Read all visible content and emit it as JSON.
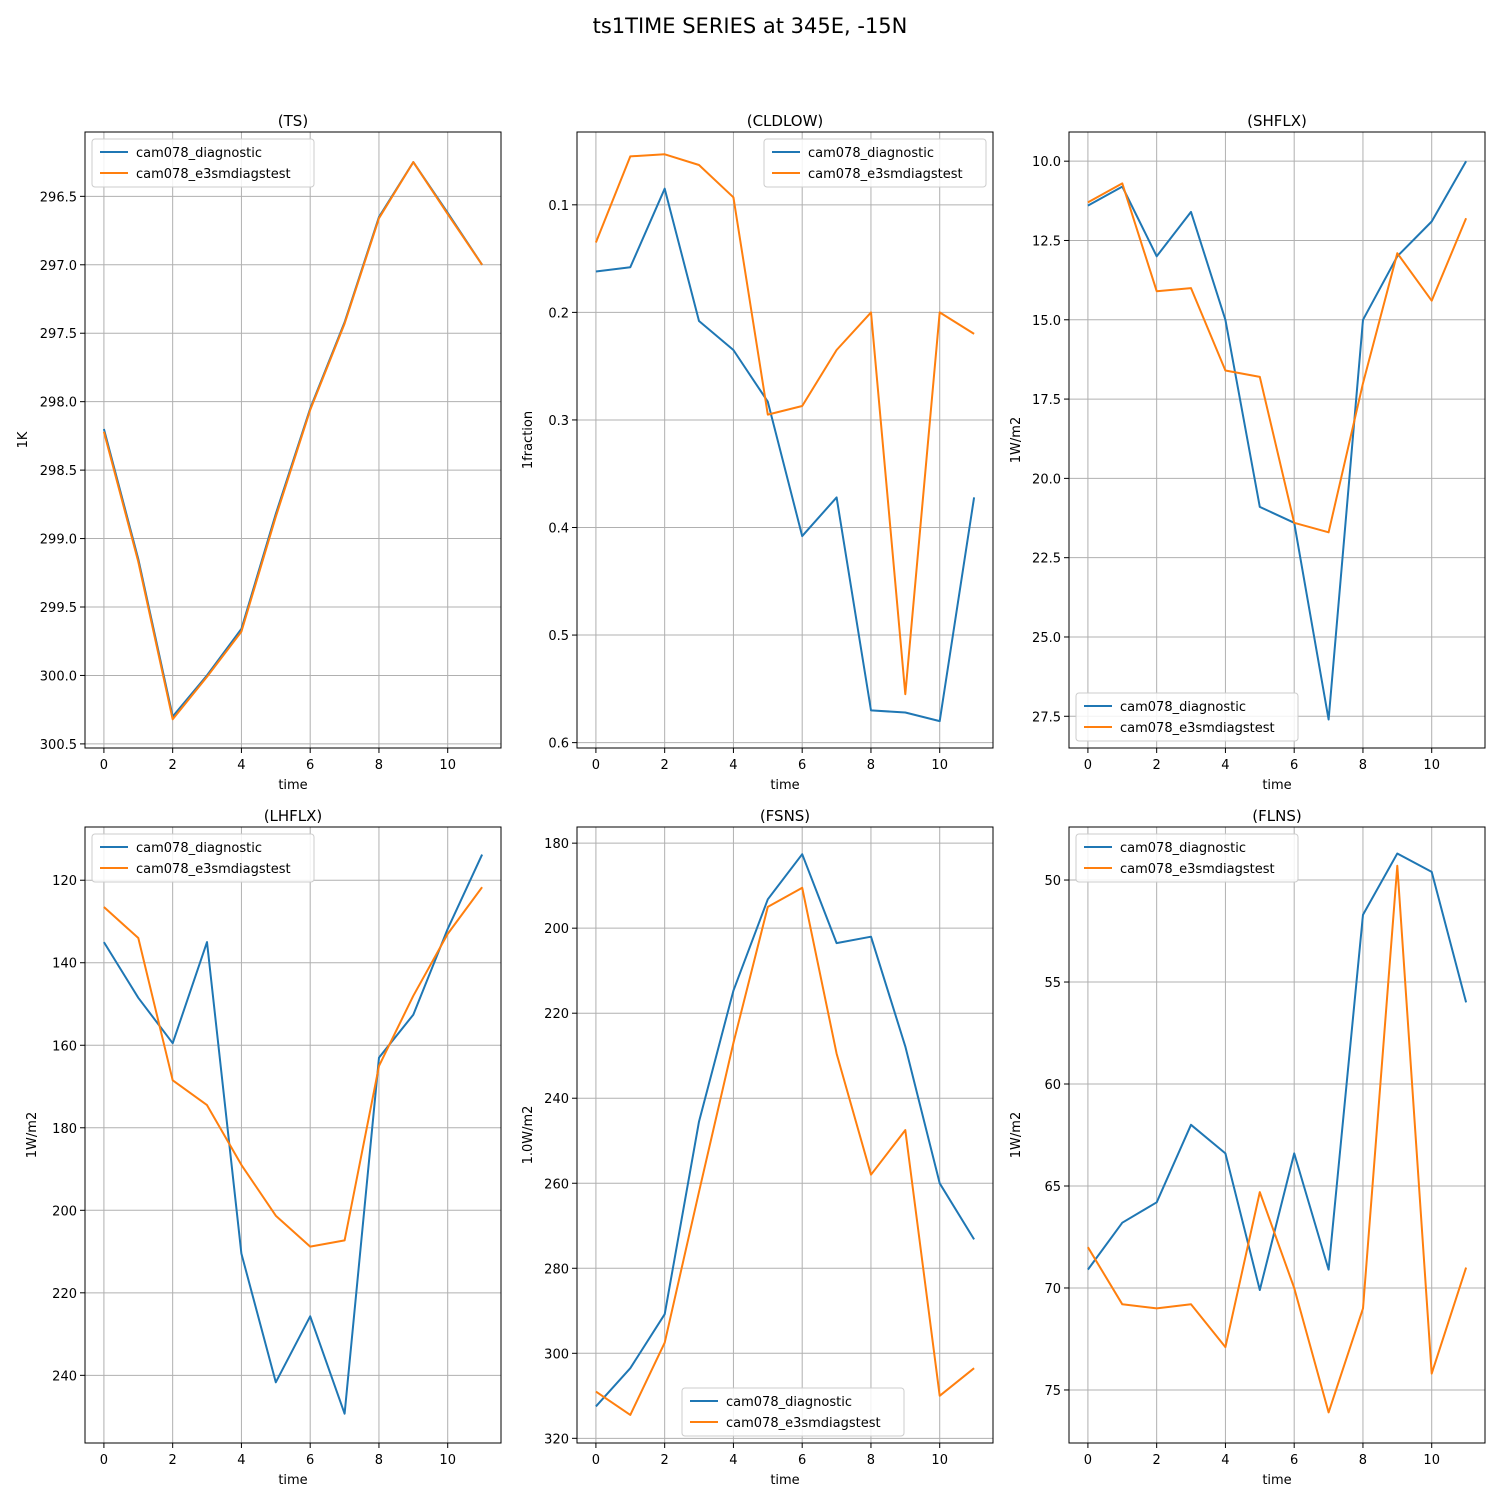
{
  "figure": {
    "suptitle": "ts1TIME SERIES at 345E, -15N",
    "colors": {
      "diagnostic": "#1f77b4",
      "e3smdiagstest": "#ff7f0e",
      "grid": "#b0b0b0"
    }
  },
  "chart_data": [
    {
      "type": "line",
      "title": "(TS)",
      "xlabel": "time",
      "ylabel": "1K",
      "xlim": [
        -0.55,
        11.55
      ],
      "ylim": [
        300.53,
        296.03
      ],
      "y_inverted": true,
      "xticks": [
        0,
        2,
        4,
        6,
        8,
        10
      ],
      "yticks": [
        296.5,
        297.0,
        297.5,
        298.0,
        298.5,
        299.0,
        299.5,
        300.0,
        300.5
      ],
      "ytick_labels": [
        "296.5",
        "297.0",
        "297.5",
        "298.0",
        "298.5",
        "299.0",
        "299.5",
        "300.0",
        "300.5"
      ],
      "grid": true,
      "legend_position": "upper-left",
      "x": [
        0,
        1,
        2,
        3,
        4,
        5,
        6,
        7,
        8,
        9,
        10,
        11
      ],
      "series": [
        {
          "name": "cam078_diagnostic",
          "color": "#1f77b4",
          "values": [
            298.2,
            299.15,
            300.3,
            300.0,
            299.66,
            298.82,
            298.05,
            297.42,
            296.65,
            296.25,
            296.62,
            297.0
          ]
        },
        {
          "name": "cam078_e3smdiagstest",
          "color": "#ff7f0e",
          "values": [
            298.22,
            299.17,
            300.32,
            300.01,
            299.68,
            298.84,
            298.06,
            297.43,
            296.66,
            296.25,
            296.63,
            297.0
          ]
        }
      ]
    },
    {
      "type": "line",
      "title": "(CLDLOW)",
      "xlabel": "time",
      "ylabel": "1fraction",
      "xlim": [
        -0.55,
        11.55
      ],
      "ylim": [
        0.605,
        0.0323
      ],
      "y_inverted": true,
      "xticks": [
        0,
        2,
        4,
        6,
        8,
        10
      ],
      "yticks": [
        0.1,
        0.2,
        0.3,
        0.4,
        0.5,
        0.6
      ],
      "ytick_labels": [
        "0.1",
        "0.2",
        "0.3",
        "0.4",
        "0.5",
        "0.6"
      ],
      "grid": true,
      "legend_position": "upper-right",
      "x": [
        0,
        1,
        2,
        3,
        4,
        5,
        6,
        7,
        8,
        9,
        10,
        11
      ],
      "series": [
        {
          "name": "cam078_diagnostic",
          "color": "#1f77b4",
          "values": [
            0.162,
            0.158,
            0.085,
            0.208,
            0.235,
            0.283,
            0.408,
            0.372,
            0.57,
            0.572,
            0.58,
            0.372
          ]
        },
        {
          "name": "cam078_e3smdiagstest",
          "color": "#ff7f0e",
          "values": [
            0.135,
            0.055,
            0.053,
            0.063,
            0.093,
            0.295,
            0.287,
            0.235,
            0.2,
            0.555,
            0.2,
            0.22
          ]
        }
      ]
    },
    {
      "type": "line",
      "title": "(SHFLX)",
      "xlabel": "time",
      "ylabel": "1W/m2",
      "xlim": [
        -0.55,
        11.55
      ],
      "ylim": [
        28.5,
        9.08
      ],
      "y_inverted": true,
      "xticks": [
        0,
        2,
        4,
        6,
        8,
        10
      ],
      "yticks": [
        10.0,
        12.5,
        15.0,
        17.5,
        20.0,
        22.5,
        25.0,
        27.5
      ],
      "ytick_labels": [
        "10.0",
        "12.5",
        "15.0",
        "17.5",
        "20.0",
        "22.5",
        "25.0",
        "27.5"
      ],
      "grid": true,
      "legend_position": "lower-left",
      "x": [
        0,
        1,
        2,
        3,
        4,
        5,
        6,
        7,
        8,
        9,
        10,
        11
      ],
      "series": [
        {
          "name": "cam078_diagnostic",
          "color": "#1f77b4",
          "values": [
            11.4,
            10.8,
            13.0,
            11.6,
            15.0,
            20.9,
            21.4,
            27.6,
            15.0,
            13.0,
            11.9,
            10.0
          ]
        },
        {
          "name": "cam078_e3smdiagstest",
          "color": "#ff7f0e",
          "values": [
            11.3,
            10.7,
            14.1,
            14.0,
            16.6,
            16.8,
            21.4,
            21.7,
            17.0,
            12.9,
            14.4,
            11.8
          ]
        }
      ]
    },
    {
      "type": "line",
      "title": "(LHFLX)",
      "xlabel": "time",
      "ylabel": "1W/m2",
      "xlim": [
        -0.55,
        11.55
      ],
      "ylim": [
        256.4,
        107.1
      ],
      "y_inverted": true,
      "xticks": [
        0,
        2,
        4,
        6,
        8,
        10
      ],
      "yticks": [
        120,
        140,
        160,
        180,
        200,
        220,
        240
      ],
      "ytick_labels": [
        "120",
        "140",
        "160",
        "180",
        "200",
        "220",
        "240"
      ],
      "grid": true,
      "legend_position": "upper-left",
      "x": [
        0,
        1,
        2,
        3,
        4,
        5,
        6,
        7,
        8,
        9,
        10,
        11
      ],
      "series": [
        {
          "name": "cam078_diagnostic",
          "color": "#1f77b4",
          "values": [
            135.0,
            148.5,
            159.5,
            135.0,
            210.5,
            241.7,
            225.7,
            249.3,
            163.0,
            152.6,
            131.8,
            113.8
          ]
        },
        {
          "name": "cam078_e3smdiagstest",
          "color": "#ff7f0e",
          "values": [
            126.5,
            134.0,
            168.5,
            174.5,
            189.0,
            201.3,
            208.8,
            207.3,
            165.0,
            148.0,
            133.0,
            121.7
          ]
        }
      ]
    },
    {
      "type": "line",
      "title": "(FSNS)",
      "xlabel": "time",
      "ylabel": "1.0W/m2",
      "xlim": [
        -0.55,
        11.55
      ],
      "ylim": [
        321.1,
        176.2
      ],
      "y_inverted": true,
      "xticks": [
        0,
        2,
        4,
        6,
        8,
        10
      ],
      "yticks": [
        180,
        200,
        220,
        240,
        260,
        280,
        300,
        320
      ],
      "ytick_labels": [
        "180",
        "200",
        "220",
        "240",
        "260",
        "280",
        "300",
        "320"
      ],
      "grid": true,
      "legend_position": "lower-center",
      "x": [
        0,
        1,
        2,
        3,
        4,
        5,
        6,
        7,
        8,
        9,
        10,
        11
      ],
      "series": [
        {
          "name": "cam078_diagnostic",
          "color": "#1f77b4",
          "values": [
            312.5,
            303.5,
            290.8,
            245.5,
            214.7,
            193.2,
            182.6,
            203.5,
            202.0,
            227.8,
            260.0,
            273.2
          ]
        },
        {
          "name": "cam078_e3smdiagstest",
          "color": "#ff7f0e",
          "values": [
            309.0,
            314.5,
            297.5,
            262.0,
            227.0,
            195.0,
            190.5,
            229.5,
            258.0,
            247.5,
            310.0,
            303.5
          ]
        }
      ]
    },
    {
      "type": "line",
      "title": "(FLNS)",
      "xlabel": "time",
      "ylabel": "1W/m2",
      "xlim": [
        -0.55,
        11.55
      ],
      "ylim": [
        77.6,
        47.4
      ],
      "y_inverted": true,
      "xticks": [
        0,
        2,
        4,
        6,
        8,
        10
      ],
      "yticks": [
        50,
        55,
        60,
        65,
        70,
        75
      ],
      "ytick_labels": [
        "50",
        "55",
        "60",
        "65",
        "70",
        "75"
      ],
      "grid": true,
      "legend_position": "upper-left",
      "x": [
        0,
        1,
        2,
        3,
        4,
        5,
        6,
        7,
        8,
        9,
        10,
        11
      ],
      "series": [
        {
          "name": "cam078_diagnostic",
          "color": "#1f77b4",
          "values": [
            69.1,
            66.8,
            65.8,
            62.0,
            63.4,
            70.1,
            63.4,
            69.1,
            51.7,
            48.7,
            49.6,
            56.0
          ]
        },
        {
          "name": "cam078_e3smdiagstest",
          "color": "#ff7f0e",
          "values": [
            68.0,
            70.8,
            71.0,
            70.8,
            72.9,
            65.3,
            70.0,
            76.1,
            71.0,
            49.3,
            74.2,
            69.0
          ]
        }
      ]
    }
  ]
}
